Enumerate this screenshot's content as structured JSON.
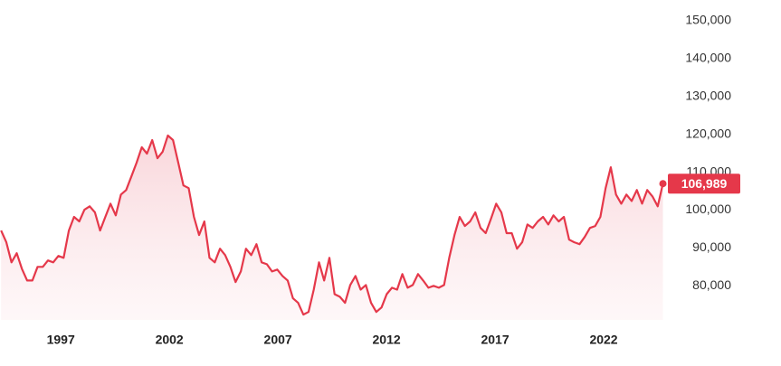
{
  "chart_data": {
    "type": "area",
    "color": "#e5384a",
    "x": [
      1994.25,
      1994.49,
      1994.73,
      1994.97,
      1995.21,
      1995.45,
      1995.69,
      1995.93,
      1996.17,
      1996.41,
      1996.65,
      1996.89,
      1997.13,
      1997.37,
      1997.61,
      1997.85,
      1998.09,
      1998.33,
      1998.57,
      1998.81,
      1999.05,
      1999.29,
      1999.53,
      1999.77,
      2000.01,
      2000.25,
      2000.49,
      2000.73,
      2000.97,
      2001.21,
      2001.45,
      2001.69,
      2001.93,
      2002.17,
      2002.41,
      2002.65,
      2002.89,
      2003.13,
      2003.37,
      2003.61,
      2003.85,
      2004.09,
      2004.33,
      2004.57,
      2004.81,
      2005.05,
      2005.29,
      2005.53,
      2005.77,
      2006.01,
      2006.25,
      2006.49,
      2006.73,
      2006.97,
      2007.21,
      2007.45,
      2007.69,
      2007.93,
      2008.17,
      2008.41,
      2008.65,
      2008.89,
      2009.13,
      2009.37,
      2009.61,
      2009.85,
      2010.09,
      2010.33,
      2010.57,
      2010.81,
      2011.05,
      2011.29,
      2011.53,
      2011.77,
      2012.01,
      2012.25,
      2012.49,
      2012.73,
      2012.97,
      2013.21,
      2013.45,
      2013.69,
      2013.93,
      2014.17,
      2014.41,
      2014.65,
      2014.89,
      2015.13,
      2015.37,
      2015.61,
      2015.85,
      2016.09,
      2016.33,
      2016.57,
      2016.81,
      2017.05,
      2017.29,
      2017.53,
      2017.77,
      2018.01,
      2018.25,
      2018.49,
      2018.73,
      2018.97,
      2019.21,
      2019.45,
      2019.69,
      2019.93,
      2020.17,
      2020.41,
      2020.65,
      2020.89,
      2021.13,
      2021.37,
      2021.61,
      2021.85,
      2022.09,
      2022.33,
      2022.57,
      2022.81,
      2023.05,
      2023.29,
      2023.53,
      2023.77,
      2024.01,
      2024.25,
      2024.49,
      2024.73
    ],
    "values": [
      94600,
      91500,
      86200,
      88600,
      84500,
      81400,
      81400,
      85000,
      85000,
      86700,
      86200,
      87900,
      87400,
      94600,
      98200,
      97000,
      100100,
      101000,
      99400,
      94600,
      98200,
      101700,
      98600,
      104100,
      105300,
      108900,
      112500,
      116600,
      114900,
      118500,
      113700,
      115400,
      119700,
      118500,
      112500,
      106500,
      105800,
      98200,
      93400,
      97000,
      87400,
      86200,
      89800,
      88100,
      85000,
      81000,
      83800,
      89800,
      88100,
      91000,
      86200,
      85700,
      83800,
      84300,
      82600,
      81400,
      76700,
      75500,
      72400,
      73100,
      79000,
      86200,
      81400,
      87400,
      77800,
      77100,
      75500,
      80200,
      82600,
      79000,
      80200,
      75500,
      73100,
      74300,
      77800,
      79500,
      79000,
      83100,
      79500,
      80200,
      83100,
      81400,
      79500,
      80000,
      79500,
      80200,
      87400,
      93400,
      98200,
      95800,
      97000,
      99400,
      95300,
      93900,
      97700,
      101700,
      99400,
      93900,
      93900,
      89800,
      91500,
      96200,
      95300,
      97000,
      98200,
      96200,
      98600,
      97000,
      98200,
      92200,
      91500,
      91000,
      92900,
      95300,
      95800,
      98200,
      105800,
      111300,
      104100,
      101700,
      104100,
      102400,
      105300,
      101700,
      105300,
      103600,
      101000,
      106989
    ],
    "xlim": [
      1994.2,
      2024.75
    ],
    "ylim": [
      71000,
      155000
    ],
    "xticks": [
      1997,
      2002,
      2007,
      2012,
      2017,
      2022
    ],
    "yticks": [
      {
        "value": 80000,
        "label": "80,000"
      },
      {
        "value": 90000,
        "label": "90,000"
      },
      {
        "value": 100000,
        "label": "100,000"
      },
      {
        "value": 110000,
        "label": "110,000"
      },
      {
        "value": 120000,
        "label": "120,000"
      },
      {
        "value": 130000,
        "label": "130,000"
      },
      {
        "value": 140000,
        "label": "140,000"
      },
      {
        "value": 150000,
        "label": "150,000"
      }
    ],
    "latest": {
      "value": 106989,
      "label": "106,989"
    }
  }
}
